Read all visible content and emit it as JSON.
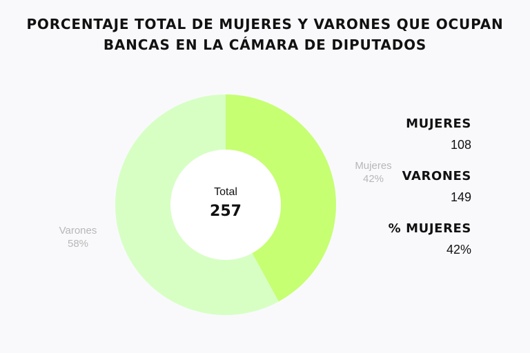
{
  "title_lines": [
    "PORCENTAJE TOTAL DE MUJERES Y VARONES QUE OCUPAN",
    "BANCAS EN LA CÁMARA DE DIPUTADOS"
  ],
  "center": {
    "label": "Total",
    "value": "257"
  },
  "stats": [
    {
      "label": "MUJERES",
      "value": "108"
    },
    {
      "label": "VARONES",
      "value": "149"
    },
    {
      "label": "% MUJERES",
      "value": "42%"
    }
  ],
  "chart_data": {
    "type": "pie",
    "donut": true,
    "title": "PORCENTAJE TOTAL DE MUJERES Y VARONES QUE OCUPAN BANCAS EN LA CÁMARA DE DIPUTADOS",
    "total": 257,
    "slices": [
      {
        "label": "Mujeres",
        "value": 108,
        "percent_label": "42%",
        "color": "#c6ff72"
      },
      {
        "label": "Varones",
        "value": 149,
        "percent_label": "58%",
        "color": "#d7ffc4"
      }
    ],
    "legend": "none"
  }
}
